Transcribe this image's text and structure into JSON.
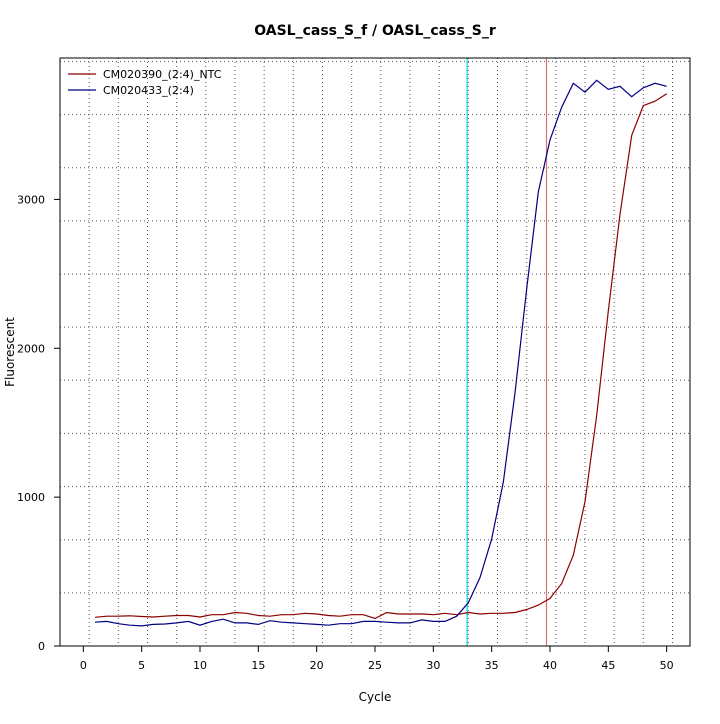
{
  "chart_data": {
    "type": "line",
    "title": "OASL_cass_S_f / OASL_cass_S_r",
    "xlabel": "Cycle",
    "ylabel": "Fluorescent",
    "xlim": [
      -2,
      52
    ],
    "ylim": [
      0,
      3950
    ],
    "x_ticks": [
      0,
      5,
      10,
      15,
      20,
      25,
      30,
      35,
      40,
      45,
      50
    ],
    "y_ticks": [
      0,
      1000,
      2000,
      3000
    ],
    "grid": true,
    "legend_position": "top-left",
    "thresholds": [
      {
        "x": 32.9,
        "color": "#00d0e0"
      },
      {
        "x": 39.7,
        "color": "#e07070"
      }
    ],
    "series": [
      {
        "name": "CM020390_(2:4)_NTC",
        "color": "#8b0000",
        "x": [
          1,
          2,
          3,
          4,
          5,
          6,
          7,
          8,
          9,
          10,
          11,
          12,
          13,
          14,
          15,
          16,
          17,
          18,
          19,
          20,
          21,
          22,
          23,
          24,
          25,
          26,
          27,
          28,
          29,
          30,
          31,
          32,
          33,
          34,
          35,
          36,
          37,
          38,
          39,
          40,
          41,
          42,
          43,
          44,
          45,
          46,
          47,
          48,
          49,
          50
        ],
        "values": [
          193,
          200,
          200,
          203,
          198,
          195,
          200,
          205,
          205,
          195,
          210,
          210,
          225,
          220,
          205,
          200,
          210,
          210,
          220,
          215,
          205,
          200,
          210,
          210,
          185,
          225,
          215,
          215,
          215,
          210,
          220,
          210,
          225,
          215,
          220,
          220,
          225,
          245,
          275,
          320,
          420,
          610,
          970,
          1550,
          2250,
          2900,
          3430,
          3630,
          3660,
          3710
        ]
      },
      {
        "name": "CM020433_(2:4)",
        "color": "#000080",
        "x": [
          1,
          2,
          3,
          4,
          5,
          6,
          7,
          8,
          9,
          10,
          11,
          12,
          13,
          14,
          15,
          16,
          17,
          18,
          19,
          20,
          21,
          22,
          23,
          24,
          25,
          26,
          27,
          28,
          29,
          30,
          31,
          32,
          33,
          34,
          35,
          36,
          37,
          38,
          39,
          40,
          41,
          42,
          43,
          44,
          45,
          46,
          47,
          48,
          49,
          50
        ],
        "values": [
          160,
          165,
          150,
          140,
          135,
          145,
          148,
          155,
          165,
          140,
          165,
          180,
          155,
          155,
          145,
          170,
          160,
          155,
          150,
          145,
          140,
          150,
          150,
          165,
          165,
          160,
          155,
          155,
          175,
          165,
          165,
          200,
          290,
          460,
          720,
          1100,
          1700,
          2400,
          3050,
          3400,
          3620,
          3780,
          3720,
          3800,
          3740,
          3760,
          3690,
          3750,
          3780,
          3760
        ]
      }
    ]
  }
}
